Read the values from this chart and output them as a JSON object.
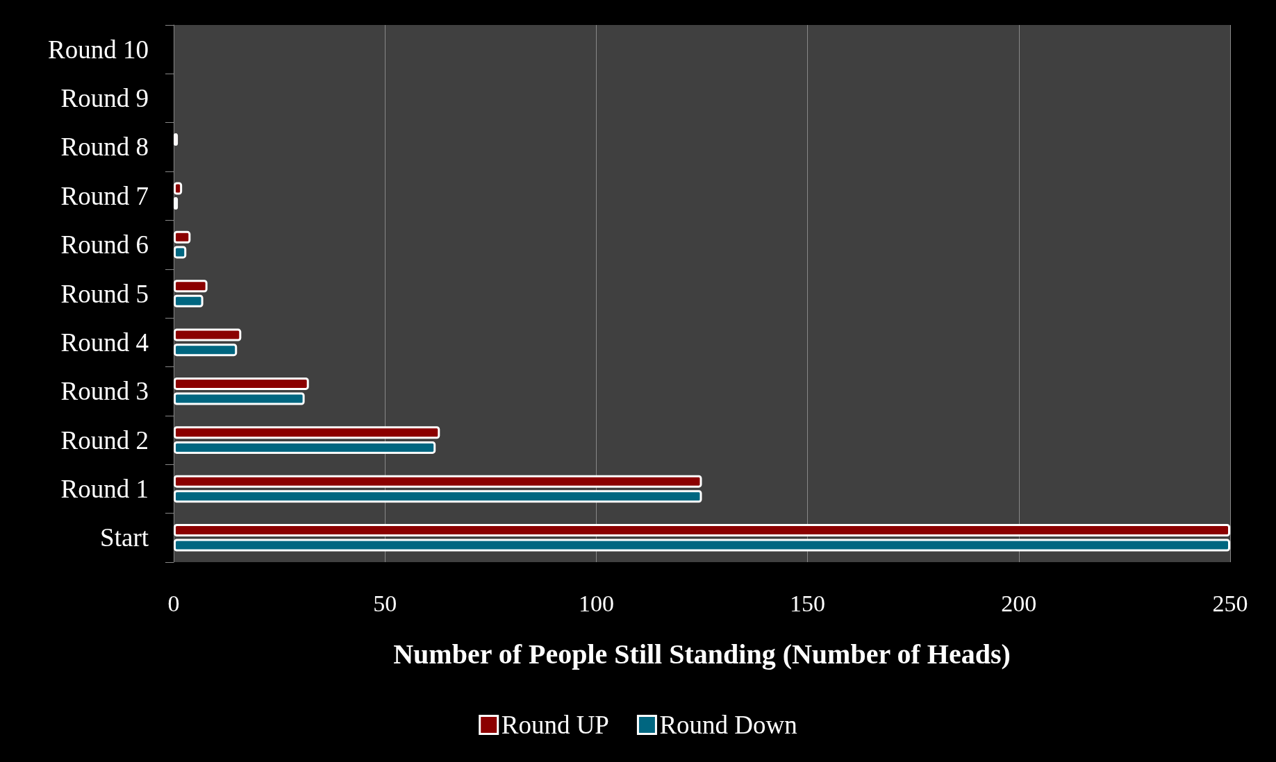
{
  "chart_data": {
    "type": "bar",
    "orientation": "horizontal",
    "xlabel": "Number of People Still Standing (Number of Heads)",
    "categories": [
      "Round 10",
      "Round 9",
      "Round 8",
      "Round 7",
      "Round 6",
      "Round 5",
      "Round 4",
      "Round 3",
      "Round 2",
      "Round 1",
      "Start"
    ],
    "series": [
      {
        "name": "Round UP",
        "color": "#8b0000",
        "values": [
          0,
          0,
          1,
          2,
          4,
          8,
          16,
          32,
          63,
          125,
          250
        ]
      },
      {
        "name": "Round Down",
        "color": "#006680",
        "values": [
          0,
          0,
          0,
          1,
          3,
          7,
          15,
          31,
          62,
          125,
          250
        ]
      }
    ],
    "xlim": [
      0,
      250
    ],
    "xticks": [
      0,
      50,
      100,
      150,
      200,
      250
    ],
    "grid": "x",
    "legend": "bottom"
  }
}
